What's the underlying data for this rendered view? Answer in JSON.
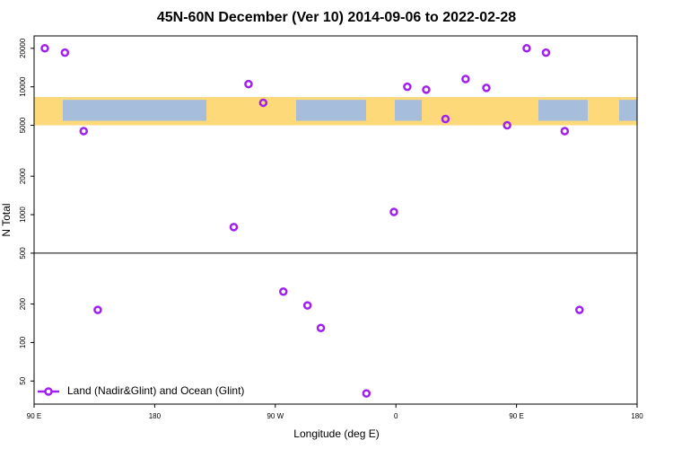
{
  "chart_data": {
    "type": "scatter",
    "title": "45N-60N December (Ver 10)   2014-09-06 to 2022-02-28",
    "x_label": "Longitude (deg E)",
    "y_label": "N Total",
    "log_y": true,
    "xlim": [
      90,
      540
    ],
    "ylim": [
      33,
      25000
    ],
    "xticks": [
      {
        "value": 90,
        "label": "90 E"
      },
      {
        "value": 180,
        "label": "180"
      },
      {
        "value": 270,
        "label": "90 W"
      },
      {
        "value": 360,
        "label": "0"
      },
      {
        "value": 450,
        "label": "90 E"
      },
      {
        "value": 540,
        "label": "180"
      }
    ],
    "yticks": [
      50,
      100,
      200,
      500,
      1000,
      2000,
      5000,
      10000,
      20000
    ],
    "hline": 500,
    "map_band_ylim": [
      5000,
      8300
    ],
    "legend": "bottom-left",
    "series": [
      {
        "name": "Land (Nadir&Glint) and Ocean (Glint)",
        "color": "#a020f0",
        "x": [
          98,
          113,
          127,
          137.5,
          239,
          250,
          261,
          276,
          294,
          304,
          338,
          358.5,
          368.5,
          382.6,
          397,
          412,
          427.5,
          443,
          457.6,
          472,
          486,
          497
        ],
        "values": [
          20000,
          18500,
          4500,
          180,
          800,
          10500,
          7500,
          250,
          195,
          130,
          40,
          1050,
          10000,
          9500,
          5600,
          11500,
          9800,
          5000,
          20000,
          18500,
          4500,
          180
        ]
      }
    ]
  }
}
